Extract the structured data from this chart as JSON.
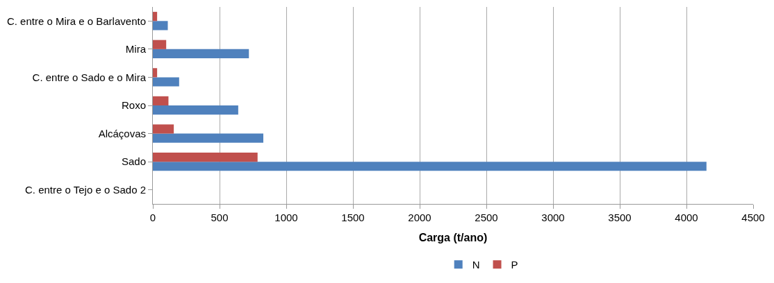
{
  "chart_data": {
    "type": "bar",
    "orientation": "horizontal",
    "xlabel": "Carga (t/ano)",
    "categories": [
      "C. entre o Mira e o Barlavento",
      "Mira",
      "C. entre o Sado e o Mira",
      "Roxo",
      "Alcáçovas",
      "Sado",
      "C. entre o Tejo e o Sado 2"
    ],
    "series": [
      {
        "name": "N",
        "color": "#4f81bd",
        "values": [
          112,
          720,
          197,
          640,
          828,
          4150,
          0
        ]
      },
      {
        "name": "P",
        "color": "#c0504d",
        "values": [
          32,
          100,
          32,
          117,
          157,
          785,
          0
        ]
      }
    ],
    "xlim": [
      0,
      4500
    ],
    "xticks": [
      0,
      500,
      1000,
      1500,
      2000,
      2500,
      3000,
      3500,
      4000,
      4500
    ],
    "grid": "x",
    "legend": "bottom"
  }
}
